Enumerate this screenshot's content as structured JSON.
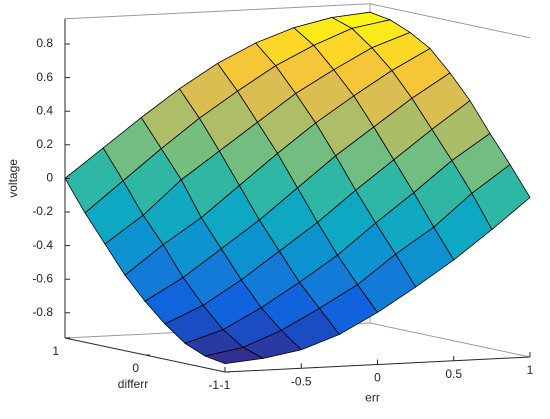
{
  "chart_data": {
    "type": "surface",
    "xlabel": "err",
    "ylabel": "differr",
    "zlabel": "voltage",
    "x": [
      -1,
      -0.75,
      -0.5,
      -0.25,
      0,
      0.25,
      0.5,
      0.75,
      1
    ],
    "y": [
      -1,
      -0.75,
      -0.5,
      -0.25,
      0,
      0.25,
      0.5,
      0.75,
      1
    ],
    "z": [
      [
        -0.9,
        -0.88,
        -0.84,
        -0.76,
        -0.64,
        -0.5,
        -0.35,
        -0.18,
        0
      ],
      [
        -0.88,
        -0.84,
        -0.75,
        -0.63,
        -0.5,
        -0.33,
        -0.18,
        0.01,
        0.17
      ],
      [
        -0.83,
        -0.76,
        -0.64,
        -0.5,
        -0.35,
        -0.17,
        0,
        0.18,
        0.33
      ],
      [
        -0.74,
        -0.64,
        -0.5,
        -0.34,
        -0.18,
        0,
        0.17,
        0.34,
        0.5
      ],
      [
        -0.63,
        -0.5,
        -0.34,
        -0.18,
        0,
        0.18,
        0.34,
        0.5,
        0.64
      ],
      [
        -0.5,
        -0.33,
        -0.18,
        0,
        0.18,
        0.35,
        0.5,
        0.64,
        0.76
      ],
      [
        -0.34,
        -0.18,
        0.02,
        0.18,
        0.34,
        0.5,
        0.63,
        0.75,
        0.83
      ],
      [
        -0.18,
        0,
        0.18,
        0.35,
        0.5,
        0.64,
        0.75,
        0.84,
        0.88
      ],
      [
        0,
        0.17,
        0.34,
        0.5,
        0.64,
        0.75,
        0.83,
        0.88,
        0.9
      ]
    ],
    "xlim": [
      -1,
      1
    ],
    "ylim": [
      -1,
      1
    ],
    "zlim": [
      -0.95,
      0.95
    ],
    "xticks": [
      -1,
      -0.5,
      0,
      0.5,
      1
    ],
    "yticks": [
      -1,
      0,
      1
    ],
    "zticks": [
      -0.8,
      -0.6,
      -0.4,
      -0.2,
      0,
      0.2,
      0.4,
      0.6,
      0.8
    ],
    "clim": [
      -0.9,
      0.9
    ],
    "colormap": [
      "#352a87",
      "#0f5cdd",
      "#1481d6",
      "#06a4ca",
      "#2eb7a4",
      "#87bf77",
      "#d1bb59",
      "#fec832",
      "#f9fb0e"
    ],
    "edge_color": "#000000"
  }
}
